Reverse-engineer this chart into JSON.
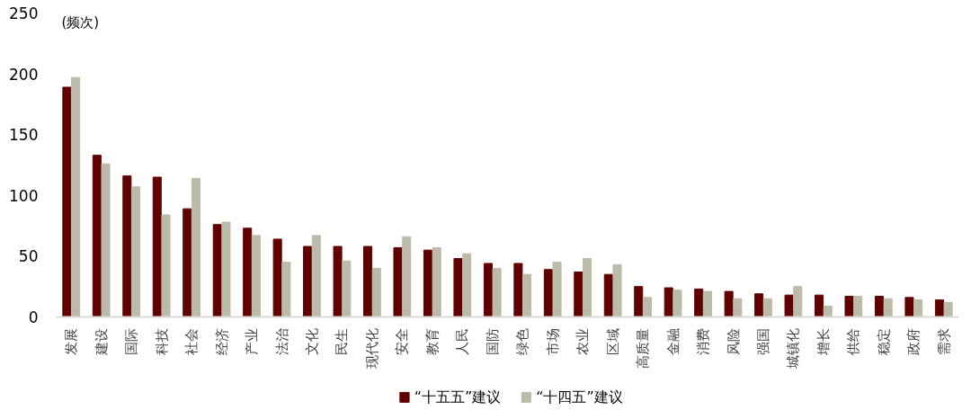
{
  "chart_data": {
    "type": "bar",
    "ylabel": "(频次)",
    "categories": [
      "发展",
      "建设",
      "国际",
      "科技",
      "社会",
      "经济",
      "产业",
      "法治",
      "文化",
      "民生",
      "现代化",
      "安全",
      "教育",
      "人民",
      "国防",
      "绿色",
      "市场",
      "农业",
      "区域",
      "高质量",
      "金融",
      "消费",
      "风险",
      "强国",
      "城镇化",
      "增长",
      "供给",
      "稳定",
      "政府",
      "需求"
    ],
    "series": [
      {
        "name": "“十五五”建议",
        "color": "#600000",
        "values": [
          189,
          133,
          116,
          115,
          89,
          76,
          73,
          64,
          58,
          58,
          58,
          57,
          55,
          48,
          44,
          44,
          39,
          37,
          35,
          25,
          24,
          23,
          21,
          19,
          18,
          18,
          17,
          17,
          16,
          14
        ]
      },
      {
        "name": "“十四五”建议",
        "color": "#bcbaa8",
        "values": [
          197,
          126,
          107,
          84,
          114,
          78,
          67,
          45,
          67,
          46,
          40,
          66,
          57,
          52,
          40,
          35,
          45,
          48,
          43,
          16,
          22,
          21,
          15,
          15,
          25,
          9,
          17,
          15,
          14,
          12
        ]
      }
    ],
    "ylim": [
      0,
      250
    ],
    "yticks": [
      0,
      50,
      100,
      150,
      200,
      250
    ],
    "grid": false,
    "legend": "bottom"
  }
}
